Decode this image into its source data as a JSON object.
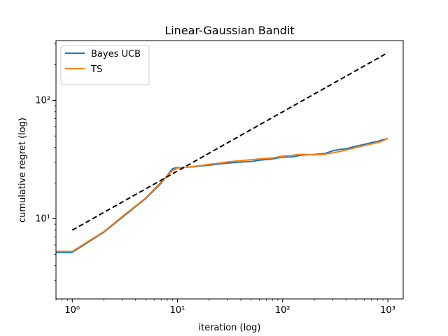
{
  "chart_data": {
    "type": "line",
    "title": "Linear-Gaussian Bandit",
    "xlabel": "iteration (log)",
    "ylabel": "cumulative regret (log)",
    "xscale": "log",
    "yscale": "log",
    "xlim": [
      0.7,
      1400
    ],
    "ylim": [
      2.1,
      320
    ],
    "x_ticks": [
      1,
      10,
      100,
      1000
    ],
    "x_tick_labels": [
      "10⁰",
      "10¹",
      "10²",
      "10³"
    ],
    "y_ticks": [
      10,
      100
    ],
    "y_tick_labels": [
      "10¹",
      "10²"
    ],
    "grid": false,
    "legend_position": "top-left",
    "series": [
      {
        "name": "Bayes UCB",
        "color": "#1f77b4",
        "x": [
          0.7,
          1,
          2,
          3,
          5,
          7,
          9,
          10,
          12,
          15,
          20,
          25,
          30,
          40,
          50,
          60,
          80,
          100,
          120,
          150,
          200,
          250,
          300,
          350,
          400,
          500,
          600,
          700,
          800,
          900,
          1000
        ],
        "y": [
          5.2,
          5.2,
          7.7,
          10.3,
          14.8,
          20,
          26.5,
          27,
          27.2,
          27.6,
          28.3,
          29,
          29.5,
          30.1,
          30.4,
          31.2,
          32,
          33.2,
          33.2,
          34.4,
          34.9,
          35.5,
          37.5,
          38.5,
          39,
          41,
          42.5,
          44,
          45,
          46.5,
          47.5
        ]
      },
      {
        "name": "TS",
        "color": "#ff7f0e",
        "x": [
          0.7,
          1,
          2,
          3,
          5,
          7,
          9,
          10,
          12,
          15,
          20,
          25,
          30,
          40,
          50,
          60,
          80,
          100,
          120,
          150,
          200,
          250,
          300,
          350,
          400,
          500,
          600,
          700,
          800,
          900,
          1000
        ],
        "y": [
          5.3,
          5.3,
          7.8,
          10.5,
          15,
          20.5,
          25.5,
          26.8,
          27.2,
          27.8,
          28.8,
          29.5,
          30.2,
          31,
          31.5,
          32,
          32.6,
          33.8,
          34.3,
          35,
          34.6,
          35,
          36,
          37,
          38,
          40,
          41.5,
          42.8,
          44,
          45.5,
          48
        ]
      },
      {
        "name": "",
        "color": "#000000",
        "dashed": true,
        "x": [
          1,
          1000
        ],
        "y": [
          8,
          253
        ]
      }
    ]
  }
}
